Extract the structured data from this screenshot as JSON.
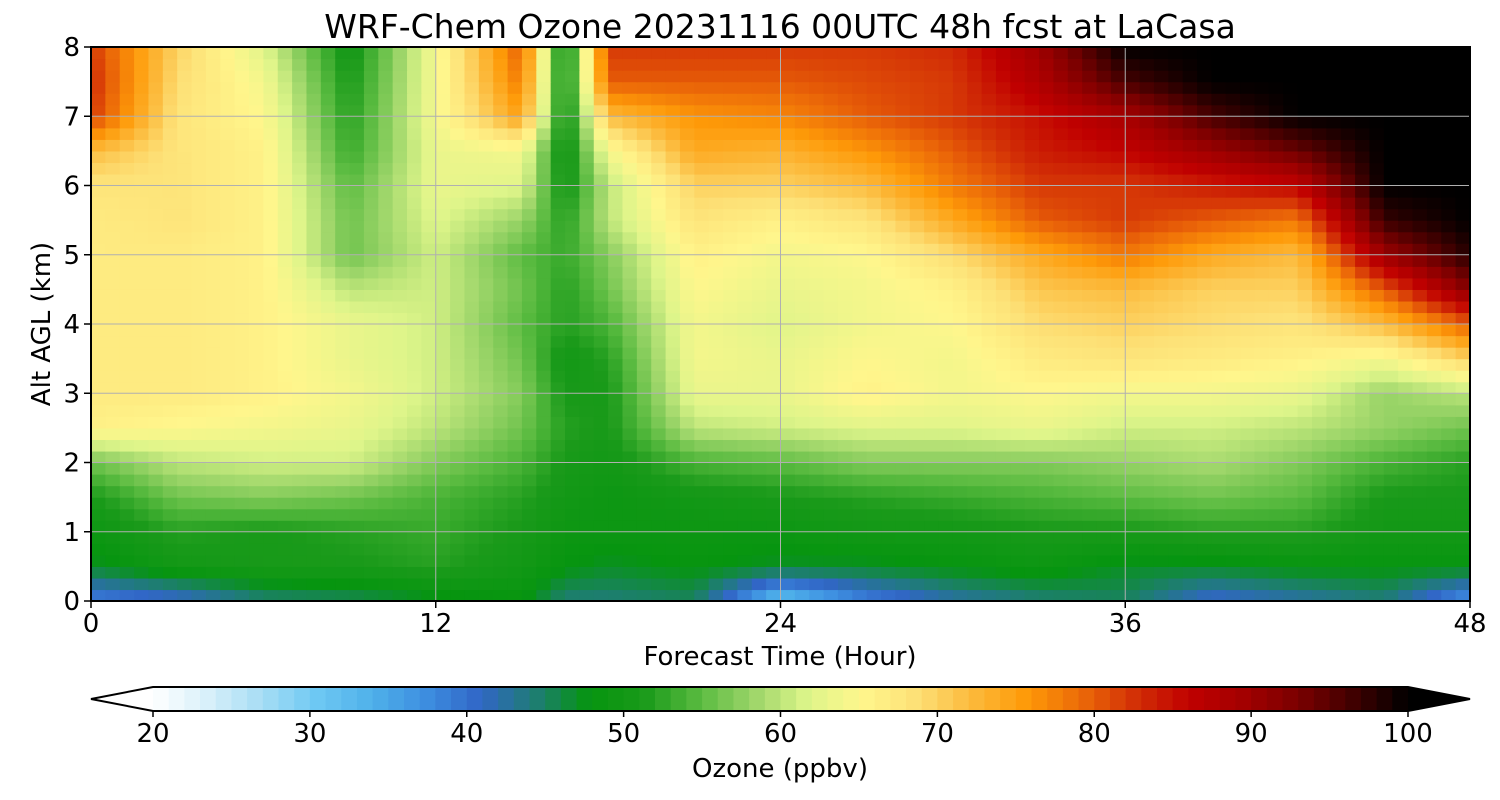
{
  "chart_data": {
    "type": "heatmap",
    "title": "WRF-Chem Ozone  20231116 00UTC 48h fcst at LaCasa",
    "xlabel": "Forecast Time (Hour)",
    "ylabel": "Alt AGL (km)",
    "xlim": [
      0,
      48
    ],
    "ylim": [
      0,
      8
    ],
    "x_ticks": [
      0,
      12,
      24,
      36,
      48
    ],
    "y_ticks": [
      0,
      1,
      2,
      3,
      4,
      5,
      6,
      7,
      8
    ],
    "grid": true,
    "x": [
      0,
      3,
      6,
      9,
      12,
      15,
      16.5,
      18,
      21,
      24,
      27,
      30,
      33,
      36,
      39,
      42,
      45,
      48
    ],
    "y": [
      0,
      0.5,
      1,
      1.5,
      2,
      2.5,
      3,
      3.5,
      4,
      4.5,
      5,
      5.5,
      6,
      6.5,
      7,
      7.5,
      8
    ],
    "z": [
      [
        38,
        40,
        44,
        45,
        47,
        48,
        44,
        44,
        45,
        31,
        38,
        42,
        44,
        45,
        40,
        42,
        44,
        36
      ],
      [
        47,
        50,
        51,
        51,
        52,
        50,
        48,
        47,
        48,
        47,
        47,
        48,
        49,
        47,
        47,
        48,
        48,
        48
      ],
      [
        49,
        52,
        51,
        52,
        53,
        51,
        49,
        49,
        49,
        49,
        50,
        50,
        51,
        51,
        52,
        52,
        50,
        50
      ],
      [
        51,
        56,
        57,
        56,
        54,
        52,
        50,
        49,
        50,
        51,
        52,
        53,
        54,
        55,
        56,
        55,
        51,
        51
      ],
      [
        56,
        60,
        61,
        61,
        57,
        54,
        51,
        50,
        54,
        55,
        57,
        57,
        57,
        58,
        59,
        57,
        54,
        52
      ],
      [
        66,
        65,
        64,
        63,
        60,
        56,
        52,
        51,
        60,
        61,
        62,
        62,
        63,
        61,
        61,
        60,
        58,
        56
      ],
      [
        67,
        67,
        66,
        64,
        61,
        57,
        51,
        51,
        63,
        63,
        66,
        64,
        65,
        64,
        64,
        63,
        58,
        60
      ],
      [
        67,
        67,
        66,
        63,
        61,
        56,
        50,
        52,
        64,
        63,
        65,
        64,
        67,
        68,
        67,
        66,
        64,
        70
      ],
      [
        67,
        67,
        66,
        63,
        61,
        55,
        52,
        54,
        64,
        62,
        64,
        65,
        69,
        70,
        69,
        68,
        72,
        80
      ],
      [
        67,
        67,
        66,
        60,
        61,
        56,
        52,
        56,
        65,
        63,
        64,
        66,
        71,
        72,
        70,
        70,
        80,
        92
      ],
      [
        67,
        67,
        66,
        56,
        61,
        55,
        53,
        57,
        66,
        64,
        65,
        69,
        74,
        78,
        74,
        72,
        90,
        98
      ],
      [
        67,
        68,
        66,
        56,
        62,
        58,
        52,
        60,
        68,
        66,
        68,
        74,
        80,
        82,
        80,
        78,
        97,
        100
      ],
      [
        68,
        68,
        66,
        55,
        63,
        62,
        50,
        60,
        70,
        70,
        72,
        78,
        82,
        82,
        84,
        86,
        100,
        100
      ],
      [
        72,
        68,
        66,
        53,
        63,
        64,
        49,
        64,
        74,
        73,
        76,
        80,
        84,
        86,
        90,
        94,
        100,
        100
      ],
      [
        82,
        68,
        65,
        52,
        64,
        75,
        49,
        72,
        76,
        77,
        80,
        82,
        85,
        89,
        96,
        100,
        100,
        100
      ],
      [
        83,
        69,
        64,
        51,
        64,
        78,
        49,
        80,
        80,
        80,
        81,
        82,
        88,
        96,
        100,
        100,
        100,
        100
      ],
      [
        82,
        70,
        62,
        50,
        64,
        80,
        48,
        82,
        82,
        82,
        82,
        83,
        90,
        100,
        100,
        100,
        100,
        100
      ]
    ],
    "colorbar": {
      "label": "Ozone  (ppbv)",
      "min": 20,
      "max": 100,
      "ticks": [
        20,
        30,
        40,
        50,
        60,
        70,
        80,
        90,
        100
      ],
      "extend": "both",
      "colors": [
        "#ffffff",
        "#d8f0fa",
        "#a6ddf4",
        "#6ec8f3",
        "#4fb1ea",
        "#3d8ee0",
        "#3166c6",
        "#1e7d73",
        "#06950f",
        "#1a9a1a",
        "#58ba3f",
        "#9cd569",
        "#def58a",
        "#fff68c",
        "#fde076",
        "#fcba3c",
        "#fe9a08",
        "#ec6a08",
        "#d22f06",
        "#c00000",
        "#a20000",
        "#7a0000",
        "#400000",
        "#000000"
      ]
    }
  }
}
